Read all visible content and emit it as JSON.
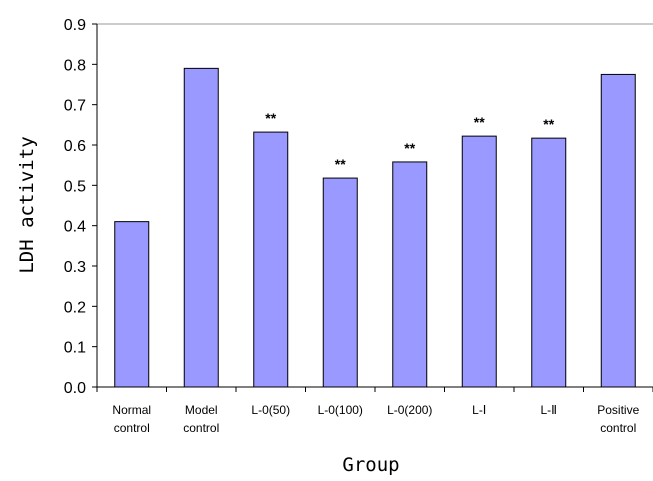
{
  "chart_data": {
    "type": "bar",
    "title": "",
    "xlabel": "Group",
    "ylabel": "LDH activity",
    "ylim": [
      0,
      0.9
    ],
    "y_ticks": [
      "0.0",
      "0.1",
      "0.2",
      "0.3",
      "0.4",
      "0.5",
      "0.6",
      "0.7",
      "0.8",
      "0.9"
    ],
    "categories": [
      [
        "Normal",
        "control"
      ],
      [
        "Model",
        "control"
      ],
      [
        "L-0(50)"
      ],
      [
        "L-0(100)"
      ],
      [
        "L-0(200)"
      ],
      [
        "L-Ⅰ"
      ],
      [
        "L-Ⅱ"
      ],
      [
        "Positive",
        "control"
      ]
    ],
    "values": [
      0.41,
      0.79,
      0.632,
      0.518,
      0.558,
      0.622,
      0.617,
      0.775
    ],
    "annotations": [
      "",
      "",
      "**",
      "**",
      "**",
      "**",
      "**",
      ""
    ],
    "bar_color": "#9999ff",
    "bar_edge_color": "#000000",
    "grid": false,
    "legend": "none"
  }
}
